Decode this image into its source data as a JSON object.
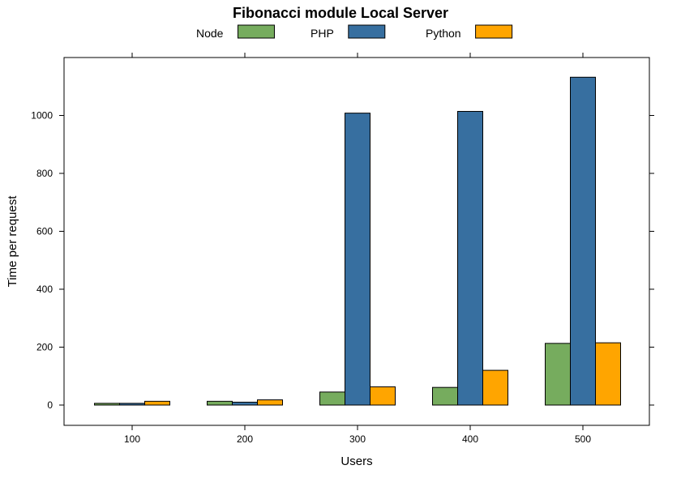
{
  "chart_data": {
    "type": "bar",
    "title": "Fibonacci module Local Server",
    "xlabel": "Users",
    "ylabel": "Time per request",
    "categories": [
      "100",
      "200",
      "300",
      "400",
      "500"
    ],
    "series": [
      {
        "name": "Node",
        "color": "#76ac5e",
        "values": [
          6,
          13,
          45,
          61,
          213
        ]
      },
      {
        "name": "PHP",
        "color": "#376fa0",
        "values": [
          6,
          10,
          1008,
          1014,
          1132
        ]
      },
      {
        "name": "Python",
        "color": "#ffa500",
        "values": [
          13,
          18,
          63,
          120,
          215
        ]
      }
    ],
    "yticks": [
      0,
      200,
      400,
      600,
      800,
      1000
    ],
    "ylim": [
      -70,
      1200
    ],
    "grid": false,
    "legend_position": "top"
  }
}
